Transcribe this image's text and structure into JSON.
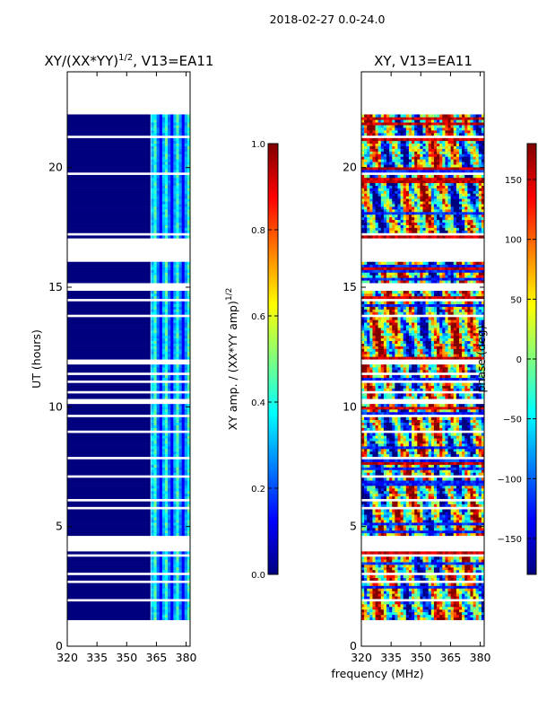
{
  "figure_title": "2018-02-27 0.0-24.0",
  "colors": {
    "jet": [
      "#00007f",
      "#0000ff",
      "#007fff",
      "#00ffff",
      "#7fff7f",
      "#ffff00",
      "#ff7f00",
      "#ff0000",
      "#7f0000"
    ],
    "axis": "#000000",
    "background": "#ffffff"
  },
  "chart_data": [
    {
      "type": "heatmap",
      "title_main": "XY/(XX*YY)",
      "title_sup": "1/2",
      "title_rest": ", V13=EA11",
      "xlabel": "frequency (MHz)",
      "ylabel": "UT (hours)",
      "xlim": [
        320,
        382
      ],
      "ylim": [
        0,
        24
      ],
      "xticks": [
        "320",
        "335",
        "350",
        "365",
        "380"
      ],
      "xtick_values": [
        320,
        335,
        350,
        365,
        380
      ],
      "yticks": [
        "0",
        "5",
        "10",
        "15",
        "20"
      ],
      "ytick_values": [
        0,
        5,
        10,
        15,
        20
      ],
      "data_time_range": [
        1.1,
        22.4
      ],
      "data_gaps_hours": [
        [
          3.9,
          4.6
        ],
        [
          16.0,
          17.0
        ]
      ],
      "value_range": [
        0.0,
        1.0
      ],
      "description_values": "amplitude ~0 below 362 MHz, bands of 0.3-0.6 near 363-382 MHz",
      "colorbar": {
        "label_main": "XY amp. / (XX*YY amp)",
        "label_sup": "1/2",
        "range": [
          0.0,
          1.0
        ],
        "ticks": [
          "0.0",
          "0.2",
          "0.4",
          "0.6",
          "0.8",
          "1.0"
        ],
        "tick_values": [
          0.0,
          0.2,
          0.4,
          0.6,
          0.8,
          1.0
        ]
      }
    },
    {
      "type": "heatmap",
      "title_main": "XY, V13=EA11",
      "xlabel": "frequency (MHz)",
      "ylabel": "",
      "xlim": [
        320,
        382
      ],
      "ylim": [
        0,
        24
      ],
      "xticks": [
        "320",
        "335",
        "350",
        "365",
        "380"
      ],
      "xtick_values": [
        320,
        335,
        350,
        365,
        380
      ],
      "yticks": [
        "0",
        "5",
        "10",
        "15",
        "20"
      ],
      "ytick_values": [
        0,
        5,
        10,
        15,
        20
      ],
      "data_time_range": [
        1.1,
        22.4
      ],
      "data_gaps_hours": [
        [
          3.9,
          4.6
        ],
        [
          16.0,
          17.0
        ]
      ],
      "value_range": [
        -180,
        180
      ],
      "colorbar": {
        "label_main": "phase (deg)",
        "range": [
          -180,
          180
        ],
        "ticks": [
          "−150",
          "−100",
          "−50",
          "0",
          "50",
          "100",
          "150"
        ],
        "tick_values": [
          -150,
          -100,
          -50,
          0,
          50,
          100,
          150
        ]
      }
    }
  ],
  "shared_xlabel": "frequency (MHz)"
}
